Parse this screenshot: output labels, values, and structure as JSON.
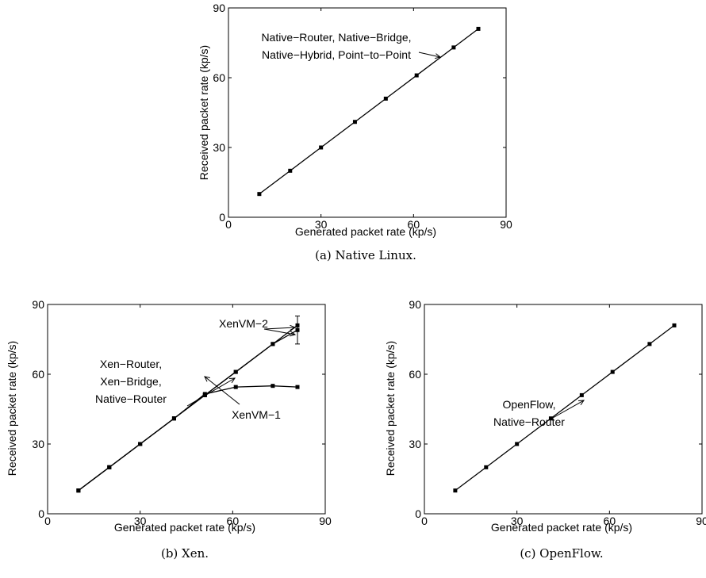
{
  "chart_data": [
    {
      "type": "line",
      "caption": "(a) Native Linux.",
      "xlabel": "Generated packet rate (kp/s)",
      "ylabel": "Received packet rate (kp/s)",
      "xlim": [
        0,
        90
      ],
      "ylim": [
        0,
        90
      ],
      "xticks": [
        "0",
        "30",
        "60",
        "90"
      ],
      "yticks": [
        "0",
        "30",
        "60",
        "90"
      ],
      "series": [
        {
          "x": [
            10,
            20,
            30,
            41,
            51,
            61,
            73,
            81
          ],
          "y": [
            10,
            20,
            30,
            41,
            51,
            61,
            73,
            81
          ]
        }
      ],
      "annotations": [
        {
          "lines": [
            "Native−Router, Native−Bridge,",
            "Native−Hybrid, Point−to−Point"
          ]
        }
      ]
    },
    {
      "type": "line",
      "caption": "(b) Xen.",
      "xlabel": "Generated packet rate (kp/s)",
      "ylabel": "Received packet rate (kp/s)",
      "xlim": [
        0,
        90
      ],
      "ylim": [
        0,
        90
      ],
      "xticks": [
        "0",
        "30",
        "60",
        "90"
      ],
      "yticks": [
        "0",
        "30",
        "60",
        "90"
      ],
      "series": [
        {
          "x": [
            10,
            20,
            30,
            41,
            51,
            61,
            73,
            81
          ],
          "y": [
            10,
            20,
            30,
            41,
            51,
            61,
            73,
            81
          ]
        },
        {
          "x": [
            10,
            20,
            30,
            41,
            51,
            61,
            73,
            81
          ],
          "y": [
            10,
            20,
            30,
            41,
            51.5,
            54.5,
            55,
            54.5
          ]
        },
        {
          "x": [
            10,
            20,
            30,
            41,
            51,
            61,
            73,
            81
          ],
          "y": [
            10,
            20,
            30,
            41,
            51,
            61,
            73,
            79
          ],
          "error_at_last": [
            73,
            85
          ]
        }
      ],
      "annotations": [
        {
          "lines": [
            "XenVM−2"
          ]
        },
        {
          "lines": [
            "Xen−Router,",
            "Xen−Bridge,",
            "Native−Router"
          ]
        },
        {
          "lines": [
            "XenVM−1"
          ]
        }
      ]
    },
    {
      "type": "line",
      "caption": "(c) OpenFlow.",
      "xlabel": "Generated packet rate (kp/s)",
      "ylabel": "Received packet rate (kp/s)",
      "xlim": [
        0,
        90
      ],
      "ylim": [
        0,
        90
      ],
      "xticks": [
        "0",
        "30",
        "60",
        "90"
      ],
      "yticks": [
        "0",
        "30",
        "60",
        "90"
      ],
      "series": [
        {
          "x": [
            10,
            20,
            30,
            41,
            51,
            61,
            73,
            81
          ],
          "y": [
            10,
            20,
            30,
            41,
            51,
            61,
            73,
            81
          ]
        }
      ],
      "annotations": [
        {
          "lines": [
            "OpenFlow,",
            "Native−Router"
          ]
        }
      ]
    }
  ]
}
